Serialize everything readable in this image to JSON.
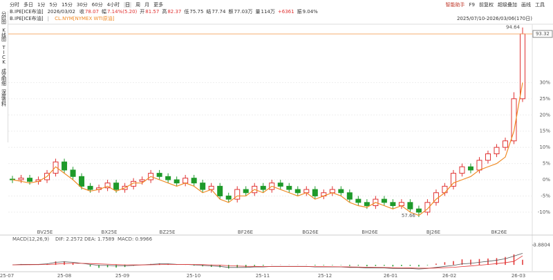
{
  "toolbar": {
    "tabs": [
      "分时",
      "多日",
      "1分",
      "5分",
      "15分",
      "30分",
      "60分",
      "4小时",
      "日",
      "周",
      "月",
      "更多"
    ],
    "right": [
      "智能助手",
      "F9",
      "前复权",
      "超级叠加",
      "画线",
      "工具"
    ]
  },
  "quote": {
    "symbol": "B.IPE[ICE布油]",
    "date": "2026/03/02",
    "fields": [
      {
        "label": "收",
        "value": "78.07"
      },
      {
        "label": "幅",
        "value": "7.14%(5.20)"
      },
      {
        "label": "开",
        "value": "81.57"
      },
      {
        "label": "高",
        "value": "82.37"
      },
      {
        "label": "低",
        "value": "75.75"
      },
      {
        "label": "结",
        "value": "77.74"
      },
      {
        "label": "额",
        "value": "77.03万"
      },
      {
        "label": "量",
        "value": "114万"
      },
      {
        "label": "",
        "value": "+6361"
      },
      {
        "label": "振",
        "value": "9.04%"
      }
    ],
    "range": "2025/07/10-2026/03/06(170日)",
    "legend_main": "B.IPE[ICE布油]",
    "legend_overlay": "CL.NYM[NYMEX WTI原油]"
  },
  "sidebar": [
    "分时图",
    "K线图",
    "TICK",
    "成交明细",
    "深度资料"
  ],
  "chart_data": {
    "type": "candlestick",
    "ylim": [
      -16,
      48
    ],
    "yticks": [
      {
        "value": -10,
        "label": "-10%"
      },
      {
        "value": -5,
        "label": "-5%"
      },
      {
        "value": 0,
        "label": "0%"
      },
      {
        "value": 5,
        "label": "5%"
      },
      {
        "value": 10,
        "label": "10%"
      },
      {
        "value": 15,
        "label": "15%"
      },
      {
        "value": 20,
        "label": "20%"
      },
      {
        "value": 25,
        "label": "25%"
      },
      {
        "value": 30,
        "label": "30%"
      }
    ],
    "grid": true,
    "series": [
      {
        "name": "B.IPE[ICE布油]",
        "up_color": "#e03030",
        "down_color": "#1e9a2a",
        "open": [
          0.2,
          0,
          0.5,
          -0.5,
          0,
          2,
          5.5,
          3,
          1,
          -2,
          -3,
          -2.5,
          -1,
          -3,
          -2,
          -0.5,
          0,
          2,
          1,
          0,
          -1,
          0.5,
          -1,
          -3,
          -2,
          -5,
          -6,
          -3,
          -4,
          -2,
          -3,
          -1,
          -2,
          -3,
          -4,
          -3,
          -5,
          -4,
          -3,
          -4,
          -6,
          -7,
          -8,
          -6,
          -7,
          -8,
          -7,
          -9,
          -10,
          -7,
          -4,
          -2,
          2,
          4,
          3,
          6,
          8,
          10,
          12,
          25
        ],
        "high": [
          1.2,
          1.5,
          1.5,
          1,
          3,
          6.5,
          6.5,
          4,
          2,
          -1,
          -1.5,
          0,
          0,
          -1,
          0.5,
          1,
          3,
          3,
          2,
          1,
          1.5,
          1.5,
          0,
          -1,
          -1,
          -4,
          -2,
          -2,
          -1,
          -1,
          0,
          0,
          -1,
          -2,
          -2,
          -2,
          -3,
          -2,
          -2,
          -3,
          -5,
          -6,
          -5,
          -5,
          -6,
          -6,
          -6,
          -8,
          -6,
          -3,
          -1,
          3,
          5,
          5,
          7,
          9,
          11,
          13,
          27,
          47
        ],
        "low": [
          -1,
          -1,
          -1.5,
          -1.5,
          -1,
          1,
          2,
          0,
          -3,
          -4,
          -4,
          -3.5,
          -4,
          -4,
          -3,
          -1.5,
          -1,
          0,
          -1,
          -2,
          -2,
          -2,
          -4,
          -4,
          -6,
          -7,
          -7,
          -5,
          -5,
          -4,
          -4,
          -3,
          -4,
          -5,
          -5,
          -6,
          -6,
          -5,
          -5,
          -7,
          -8,
          -9,
          -9,
          -8,
          -9,
          -9,
          -10,
          -11.5,
          -11,
          -8,
          -5,
          -3,
          1,
          2,
          2,
          5,
          7,
          9,
          11,
          24
        ],
        "close": [
          0,
          0.5,
          -0.5,
          0,
          2,
          5.5,
          3,
          1,
          -2,
          -3,
          -2.5,
          -1,
          -3,
          -2,
          -0.5,
          0,
          2,
          1,
          0,
          -1,
          0.5,
          -1,
          -3,
          -2,
          -5,
          -6,
          -3,
          -4,
          -2,
          -3,
          -1,
          -2,
          -3,
          -4,
          -3,
          -5,
          -4,
          -3,
          -4,
          -6,
          -7,
          -8,
          -6,
          -7,
          -8,
          -7,
          -9,
          -10,
          -7,
          -4,
          -2,
          2,
          4,
          3,
          6,
          8,
          10,
          12,
          25,
          45
        ]
      },
      {
        "name": "CL.NYM[NYMEX WTI原油]",
        "color": "#f08a24",
        "values": [
          0,
          -0.5,
          -1,
          -0.5,
          1,
          4,
          2,
          0,
          -2.5,
          -3.5,
          -3,
          -2,
          -3.5,
          -2.5,
          -1,
          -1,
          1,
          0,
          -1,
          -2,
          -1,
          -2,
          -4,
          -3,
          -6,
          -7,
          -5,
          -5,
          -3,
          -4,
          -2,
          -3,
          -4,
          -5,
          -4,
          -6,
          -5,
          -4,
          -5,
          -7,
          -8,
          -8.5,
          -7,
          -8,
          -9,
          -8,
          -10,
          -11,
          -9,
          -6,
          -4,
          -1,
          0,
          1,
          3,
          4,
          5,
          7,
          15,
          30
        ]
      }
    ],
    "annotations": {
      "high": "94.64",
      "low": "57.66",
      "last": "93.32"
    },
    "contracts": [
      "BV25E",
      "BX25E",
      "BZ25E",
      "BF26E",
      "BG26E",
      "BH26E",
      "BJ26E",
      "BK26E"
    ],
    "x_labels": [
      "25-07",
      "25-08",
      "25-09",
      "25-10",
      "25-11",
      "25-12",
      "26-01",
      "26-02",
      "26-03"
    ],
    "macd": {
      "title": "MACD(12,26,9)",
      "dif_label": "DIF: 2.2572",
      "dea_label": "DEA: 1.7589",
      "macd_label": "MACD: 0.9966",
      "ylim": [
        -1.2,
        4.2
      ],
      "yticks": [
        3.8804
      ],
      "dif": [
        0,
        0.1,
        0.1,
        0.1,
        0.2,
        0.5,
        0.6,
        0.5,
        0.3,
        0.1,
        -0.1,
        -0.1,
        -0.2,
        -0.2,
        -0.1,
        0,
        0.1,
        0.2,
        0.2,
        0.1,
        0.1,
        0,
        -0.1,
        -0.2,
        -0.3,
        -0.5,
        -0.5,
        -0.5,
        -0.4,
        -0.4,
        -0.3,
        -0.3,
        -0.3,
        -0.3,
        -0.3,
        -0.4,
        -0.4,
        -0.4,
        -0.4,
        -0.5,
        -0.5,
        -0.6,
        -0.6,
        -0.6,
        -0.7,
        -0.7,
        -0.7,
        -0.8,
        -0.7,
        -0.5,
        -0.3,
        -0.1,
        0.2,
        0.3,
        0.5,
        0.7,
        0.9,
        1.2,
        1.7,
        2.2572
      ],
      "dea": [
        0,
        0.02,
        0.04,
        0.05,
        0.08,
        0.16,
        0.25,
        0.3,
        0.3,
        0.26,
        0.19,
        0.13,
        0.06,
        0.01,
        -0.01,
        -0.01,
        0.01,
        0.05,
        0.08,
        0.08,
        0.09,
        0.07,
        0.04,
        0,
        -0.06,
        -0.15,
        -0.22,
        -0.28,
        -0.3,
        -0.32,
        -0.32,
        -0.32,
        -0.32,
        -0.32,
        -0.32,
        -0.34,
        -0.35,
        -0.36,
        -0.37,
        -0.4,
        -0.42,
        -0.46,
        -0.49,
        -0.51,
        -0.55,
        -0.58,
        -0.6,
        -0.64,
        -0.65,
        -0.62,
        -0.56,
        -0.47,
        -0.34,
        -0.21,
        -0.07,
        0.08,
        0.24,
        0.43,
        0.68,
        1.7589
      ],
      "hist": [
        0,
        0.16,
        0.12,
        0.1,
        0.24,
        0.68,
        0.7,
        0.4,
        0,
        -0.32,
        -0.58,
        -0.46,
        -0.52,
        -0.42,
        -0.18,
        0.02,
        0.18,
        0.3,
        0.24,
        0.04,
        0.02,
        -0.14,
        -0.28,
        -0.4,
        -0.48,
        -0.7,
        -0.56,
        -0.44,
        -0.2,
        -0.16,
        0.04,
        0.04,
        0.04,
        0.04,
        0.04,
        -0.12,
        -0.1,
        -0.08,
        -0.06,
        -0.2,
        -0.16,
        -0.28,
        -0.22,
        -0.18,
        -0.3,
        -0.24,
        -0.2,
        -0.32,
        -0.1,
        0.24,
        0.52,
        0.74,
        1.08,
        1.02,
        1.14,
        1.24,
        1.32,
        1.54,
        2.04,
        0.9966
      ]
    }
  }
}
